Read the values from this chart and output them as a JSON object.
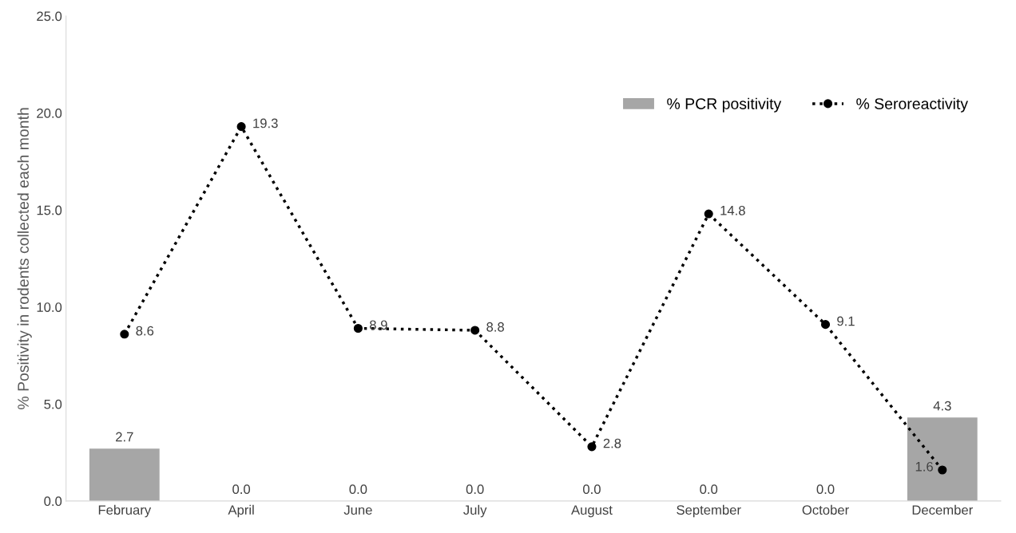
{
  "chart_data": {
    "type": "bar",
    "ylabel": "% Positivity in rodents collected each month",
    "categories": [
      "February",
      "April",
      "June",
      "July",
      "August",
      "September",
      "October",
      "December"
    ],
    "series": [
      {
        "name": "% PCR positivity",
        "color": "#a6a6a6",
        "values": [
          2.7,
          0.0,
          0.0,
          0.0,
          0.0,
          0.0,
          0.0,
          4.3
        ],
        "value_labels": [
          "2.7",
          "0.0",
          "0.0",
          "0.0",
          "0.0",
          "0.0",
          "0.0",
          "4.3"
        ]
      },
      {
        "name": "% Seroreactivity",
        "type": "line",
        "color": "#000000",
        "marker": "circle",
        "line_style": "dotted",
        "values": [
          8.6,
          19.3,
          8.9,
          8.8,
          2.8,
          14.8,
          9.1,
          1.6
        ],
        "value_labels": [
          "8.6",
          "19.3",
          "8.9",
          "8.8",
          "2.8",
          "14.8",
          "9.1",
          "1.6"
        ]
      }
    ],
    "ylim": [
      0,
      25
    ],
    "yticks": [
      {
        "value": 0,
        "label": "0.0"
      },
      {
        "value": 5,
        "label": "5.0"
      },
      {
        "value": 10,
        "label": "10.0"
      },
      {
        "value": 15,
        "label": "15.0"
      },
      {
        "value": 20,
        "label": "20.0"
      },
      {
        "value": 25,
        "label": "25.0"
      }
    ],
    "grid": false,
    "legend": "top right"
  }
}
